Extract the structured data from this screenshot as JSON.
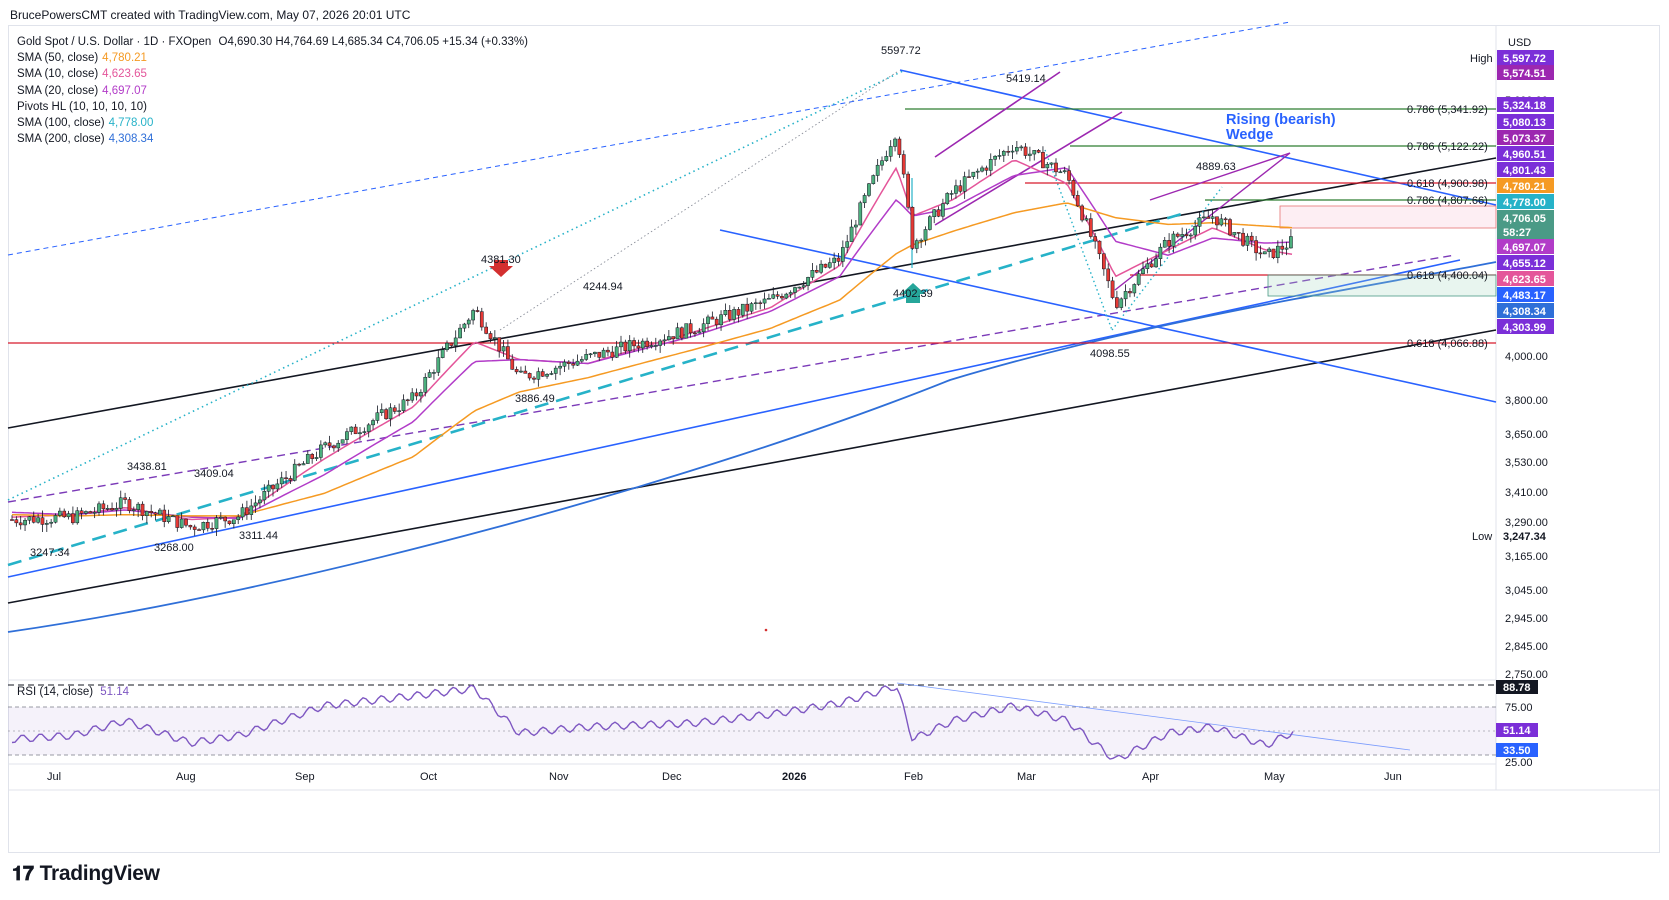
{
  "caption": "BrucePowersCMT created with TradingView.com, May 07, 2026 20:01 UTC",
  "legend": {
    "title": "Gold Spot / U.S. Dollar · 1D · FXOpen",
    "ohlc": "O4,690.30  H4,764.69  L4,685.34  C4,706.05  +15.34 (+0.33%)",
    "rows": [
      {
        "label": "SMA (50, close)",
        "value": "4,780.21",
        "color": "#f59a23"
      },
      {
        "label": "SMA (10, close)",
        "value": "4,623.65",
        "color": "#e4559a"
      },
      {
        "label": "SMA (20, close)",
        "value": "4,697.07",
        "color": "#b23cc8"
      },
      {
        "label": "Pivots HL (10, 10, 10, 10)",
        "value": "",
        "color": "#131722"
      },
      {
        "label": "SMA (100, close)",
        "value": "4,778.00",
        "color": "#26b2c8"
      },
      {
        "label": "SMA (200, close)",
        "value": "4,308.34",
        "color": "#2f6fd8"
      }
    ]
  },
  "rsi": {
    "label": "RSI (14, close)",
    "value": "51.14",
    "ticks": [
      "88.78",
      "75.00",
      "51.14",
      "33.50",
      "25.00"
    ]
  },
  "currency": "USD",
  "hl_tags": {
    "high": "High",
    "low": "Low"
  },
  "annotations": {
    "wedge_title": "Rising (bearish)",
    "wedge_title2": "Wedge",
    "pivots": [
      "5597.72",
      "5419.14",
      "4381.30",
      "4244.94",
      "3886.49",
      "3438.81",
      "3409.04",
      "3247.34",
      "3268.00",
      "3311.44",
      "4402.39",
      "4889.63",
      "4098.55"
    ],
    "fibs": [
      "0.786 (5,341.92)",
      "0.786 (5,122.22)",
      "0.618 (4,900.98)",
      "0.786 (4,807.66)",
      "0.618 (4,400.04)",
      "0.618 (4,066.88)"
    ]
  },
  "price_axis": {
    "ticks": [
      "5,600.00",
      "4,000.00",
      "3,800.00",
      "3,650.00",
      "3,530.00",
      "3,410.00",
      "3,290.00",
      "3,165.00",
      "3,045.00",
      "2,945.00",
      "2,845.00",
      "2,750.00"
    ],
    "tags": [
      {
        "text": "5,597.72",
        "bg": "#7b2fd8"
      },
      {
        "text": "5,574.51",
        "bg": "#9c27b0"
      },
      {
        "text": "5,324.18",
        "bg": "#7b2fd8"
      },
      {
        "text": "5,080.13",
        "bg": "#7b2fd8"
      },
      {
        "text": "5,073.37",
        "bg": "#9c27b0"
      },
      {
        "text": "4,960.51",
        "bg": "#7b2fd8"
      },
      {
        "text": "4,801.43",
        "bg": "#7b2fd8"
      },
      {
        "text": "4,780.21",
        "bg": "#f59a23"
      },
      {
        "text": "4,778.00",
        "bg": "#26b2c8"
      },
      {
        "text": "4,706.05",
        "bg": "#4a9a86"
      },
      {
        "text": "58:27",
        "bg": "#4a9a86"
      },
      {
        "text": "4,697.07",
        "bg": "#b23cc8"
      },
      {
        "text": "4,655.12",
        "bg": "#7b2fd8"
      },
      {
        "text": "4,623.65",
        "bg": "#e4559a"
      },
      {
        "text": "4,483.17",
        "bg": "#2962ff"
      },
      {
        "text": "4,308.34",
        "bg": "#2f6fd8"
      },
      {
        "text": "4,303.99",
        "bg": "#7b2fd8"
      },
      {
        "text": "3,247.34",
        "bg": "#ffffff"
      }
    ]
  },
  "time_axis": [
    "Jul",
    "Aug",
    "Sep",
    "Oct",
    "Nov",
    "Dec",
    "2026",
    "Feb",
    "Mar",
    "Apr",
    "May",
    "Jun"
  ],
  "brand": "TradingView",
  "chart_data": {
    "type": "candlestick",
    "title": "Gold Spot / U.S. Dollar",
    "interval": "1D",
    "scale": "log",
    "ylim": [
      2750,
      5650
    ],
    "last": {
      "open": 4690.3,
      "high": 4764.69,
      "low": 4685.34,
      "close": 4706.05,
      "change": 15.34,
      "change_pct": 0.33
    },
    "x": [
      "2025-06-25",
      "2025-07-10",
      "2025-07-23",
      "2025-08-08",
      "2025-08-20",
      "2025-09-10",
      "2025-10-02",
      "2025-10-17",
      "2025-10-28",
      "2025-11-14",
      "2025-12-10",
      "2025-12-29",
      "2026-01-15",
      "2026-01-29",
      "2026-02-02",
      "2026-02-12",
      "2026-02-27",
      "2026-03-12",
      "2026-03-24",
      "2026-04-06",
      "2026-04-17",
      "2026-04-30",
      "2026-05-07"
    ],
    "series": [
      {
        "name": "Gold Spot / U.S. Dollar",
        "values": [
          3330,
          3340,
          3400,
          3300,
          3345,
          3640,
          3870,
          4320,
          3970,
          4070,
          4220,
          4370,
          4600,
          5400,
          4680,
          5000,
          5300,
          5100,
          4350,
          4700,
          4850,
          4610,
          4706
        ]
      },
      {
        "name": "SMA (10, close)",
        "values": [
          3340,
          3350,
          3380,
          3330,
          3340,
          3590,
          3830,
          4150,
          4060,
          4040,
          4200,
          4330,
          4560,
          5150,
          4850,
          4950,
          5200,
          5050,
          4500,
          4650,
          4780,
          4650,
          4624
        ]
      },
      {
        "name": "SMA (20, close)",
        "values": [
          3360,
          3350,
          3370,
          3340,
          3335,
          3520,
          3760,
          4050,
          4060,
          4040,
          4180,
          4310,
          4500,
          4950,
          4850,
          4900,
          5100,
          5150,
          4700,
          4620,
          4720,
          4690,
          4697
        ]
      },
      {
        "name": "SMA (50, close)",
        "values": [
          3350,
          3345,
          3350,
          3345,
          3345,
          3440,
          3600,
          3810,
          3900,
          3970,
          4110,
          4220,
          4370,
          4630,
          4680,
          4760,
          4870,
          4930,
          4840,
          4800,
          4810,
          4790,
          4780
        ]
      }
    ],
    "pivot_high_low": [
      {
        "date": "2026-01-29",
        "value": 5597.72,
        "kind": "high"
      },
      {
        "date": "2026-02-27",
        "value": 5419.14,
        "kind": "high"
      },
      {
        "date": "2025-10-20",
        "value": 4381.3,
        "kind": "high"
      },
      {
        "date": "2025-11-13",
        "value": 4244.94,
        "kind": "high"
      },
      {
        "date": "2025-10-28",
        "value": 3886.49,
        "kind": "low"
      },
      {
        "date": "2025-07-23",
        "value": 3438.81,
        "kind": "high"
      },
      {
        "date": "2025-08-08",
        "value": 3409.04,
        "kind": "high"
      },
      {
        "date": "2025-06-30",
        "value": 3247.34,
        "kind": "low"
      },
      {
        "date": "2025-07-30",
        "value": 3268.0,
        "kind": "low"
      },
      {
        "date": "2025-08-20",
        "value": 3311.44,
        "kind": "low"
      },
      {
        "date": "2026-02-02",
        "value": 4402.39,
        "kind": "low"
      },
      {
        "date": "2026-04-17",
        "value": 4889.63,
        "kind": "high"
      },
      {
        "date": "2026-03-23",
        "value": 4098.55,
        "kind": "low"
      }
    ],
    "rsi_values": [
      45,
      48,
      60,
      42,
      48,
      72,
      80,
      86,
      50,
      55,
      58,
      65,
      74,
      88,
      45,
      60,
      72,
      60,
      28,
      50,
      55,
      40,
      51.14
    ]
  }
}
